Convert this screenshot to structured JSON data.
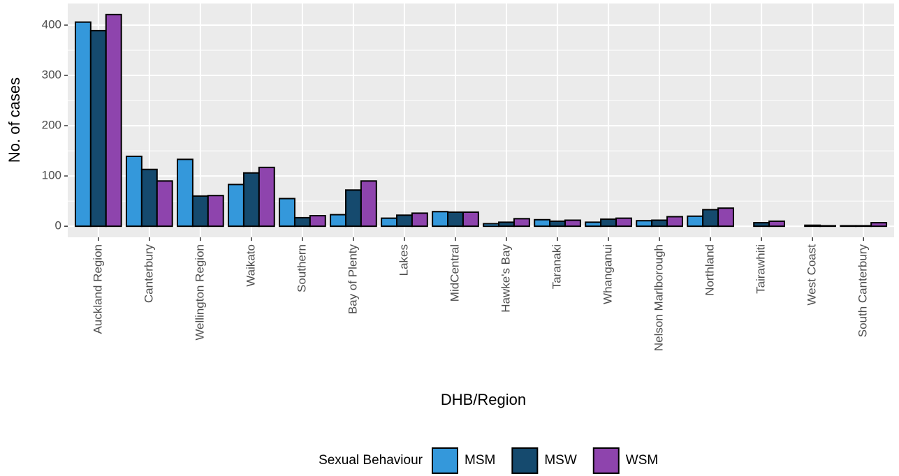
{
  "chart_data": {
    "type": "bar",
    "x_label": "DHB/Region",
    "y_label": "No. of cases",
    "legend_title": "Sexual Behaviour",
    "legend_position": "bottom",
    "grid": true,
    "categories": [
      "Auckland Region",
      "Canterbury",
      "Wellington Region",
      "Waikato",
      "Southern",
      "Bay of Plenty",
      "Lakes",
      "MidCentral",
      "Hawke's Bay",
      "Taranaki",
      "Whanganui",
      "Nelson Marlborough",
      "Northland",
      "Tairawhiti",
      "West Coast",
      "South Canterbury"
    ],
    "series": [
      {
        "name": "MSM",
        "color": "#3498db",
        "values": [
          406,
          139,
          133,
          83,
          55,
          23,
          16,
          29,
          5,
          13,
          8,
          11,
          20,
          null,
          null,
          1
        ]
      },
      {
        "name": "MSW",
        "color": "#154a6e",
        "values": [
          389,
          113,
          60,
          106,
          17,
          72,
          22,
          28,
          8,
          10,
          14,
          12,
          33,
          7,
          2,
          1
        ]
      },
      {
        "name": "WSM",
        "color": "#8e44ad",
        "values": [
          421,
          90,
          61,
          117,
          21,
          90,
          26,
          28,
          15,
          12,
          16,
          19,
          36,
          10,
          1,
          7
        ]
      }
    ],
    "ylim": [
      -22,
      443
    ],
    "yticks": [
      0,
      100,
      200,
      300,
      400
    ]
  }
}
